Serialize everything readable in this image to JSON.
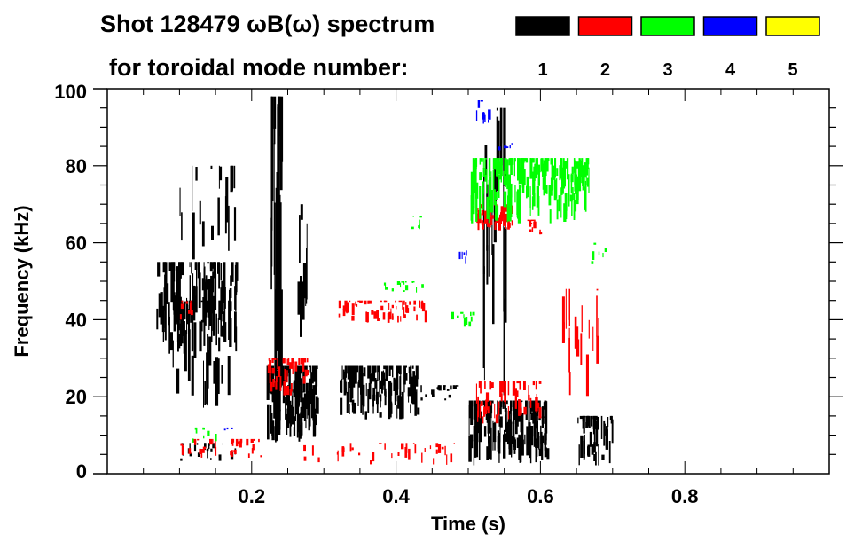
{
  "chart_data": {
    "type": "heatmap",
    "title": "Shot 128479 ωB(ω) spectrum",
    "subtitle": "for toroidal mode number:",
    "xlabel": "Time (s)",
    "ylabel": "Frequency (kHz)",
    "xlim": [
      0,
      1.0
    ],
    "ylim": [
      0,
      100
    ],
    "xticks": [
      0.2,
      0.4,
      0.6,
      0.8
    ],
    "xtick_labels": [
      "0.2",
      "0.4",
      "0.6",
      "0.8"
    ],
    "yticks": [
      0,
      20,
      40,
      60,
      80,
      100
    ],
    "ytick_labels": [
      "0",
      "20",
      "40",
      "60",
      "80",
      "100"
    ],
    "legend": [
      {
        "label": "1",
        "color": "#000000"
      },
      {
        "label": "2",
        "color": "#ff0000"
      },
      {
        "label": "3",
        "color": "#00ff00"
      },
      {
        "label": "4",
        "color": "#0000ff"
      },
      {
        "label": "5",
        "color": "#ffff00"
      }
    ],
    "legend_placement": "top-right",
    "patches": [
      {
        "mode": 1,
        "t": [
          0.066,
          0.18
        ],
        "f": [
          31,
          55
        ],
        "density": 120
      },
      {
        "mode": 1,
        "t": [
          0.09,
          0.17
        ],
        "f": [
          17,
          45
        ],
        "density": 40
      },
      {
        "mode": 1,
        "t": [
          0.1,
          0.18
        ],
        "f": [
          55,
          80
        ],
        "density": 20
      },
      {
        "mode": 1,
        "t": [
          0.1,
          0.18
        ],
        "f": [
          3,
          8
        ],
        "density": 25
      },
      {
        "mode": 1,
        "t": [
          0.22,
          0.29
        ],
        "f": [
          8,
          28
        ],
        "density": 130
      },
      {
        "mode": 1,
        "t": [
          0.225,
          0.24
        ],
        "f": [
          8,
          98
        ],
        "density": 30
      },
      {
        "mode": 1,
        "t": [
          0.26,
          0.28
        ],
        "f": [
          30,
          70
        ],
        "density": 10
      },
      {
        "mode": 1,
        "t": [
          0.32,
          0.43
        ],
        "f": [
          14,
          28
        ],
        "density": 140
      },
      {
        "mode": 1,
        "t": [
          0.43,
          0.5
        ],
        "f": [
          19,
          23
        ],
        "density": 20
      },
      {
        "mode": 1,
        "t": [
          0.5,
          0.61
        ],
        "f": [
          2,
          19
        ],
        "density": 170
      },
      {
        "mode": 1,
        "t": [
          0.52,
          0.55
        ],
        "f": [
          20,
          95
        ],
        "density": 20
      },
      {
        "mode": 1,
        "t": [
          0.65,
          0.7
        ],
        "f": [
          2,
          15
        ],
        "density": 50
      },
      {
        "mode": 2,
        "t": [
          0.22,
          0.28
        ],
        "f": [
          20,
          30
        ],
        "density": 40
      },
      {
        "mode": 2,
        "t": [
          0.32,
          0.44
        ],
        "f": [
          39,
          45
        ],
        "density": 60
      },
      {
        "mode": 2,
        "t": [
          0.51,
          0.56
        ],
        "f": [
          63,
          70
        ],
        "density": 50
      },
      {
        "mode": 2,
        "t": [
          0.58,
          0.6
        ],
        "f": [
          62,
          66
        ],
        "density": 10
      },
      {
        "mode": 2,
        "t": [
          0.51,
          0.6
        ],
        "f": [
          13,
          24
        ],
        "density": 50
      },
      {
        "mode": 2,
        "t": [
          0.1,
          0.22
        ],
        "f": [
          4,
          9
        ],
        "density": 40
      },
      {
        "mode": 2,
        "t": [
          0.27,
          0.48
        ],
        "f": [
          2,
          8
        ],
        "density": 35
      },
      {
        "mode": 2,
        "t": [
          0.63,
          0.68
        ],
        "f": [
          20,
          48
        ],
        "density": 20
      },
      {
        "mode": 2,
        "t": [
          0.1,
          0.12
        ],
        "f": [
          40,
          45
        ],
        "density": 8
      },
      {
        "mode": 3,
        "t": [
          0.5,
          0.67
        ],
        "f": [
          65,
          82
        ],
        "density": 200
      },
      {
        "mode": 3,
        "t": [
          0.37,
          0.44
        ],
        "f": [
          47,
          50
        ],
        "density": 15
      },
      {
        "mode": 3,
        "t": [
          0.42,
          0.44
        ],
        "f": [
          63,
          67
        ],
        "density": 6
      },
      {
        "mode": 3,
        "t": [
          0.47,
          0.51
        ],
        "f": [
          37,
          42
        ],
        "density": 10
      },
      {
        "mode": 3,
        "t": [
          0.67,
          0.69
        ],
        "f": [
          54,
          60
        ],
        "density": 6
      },
      {
        "mode": 3,
        "t": [
          0.11,
          0.15
        ],
        "f": [
          8,
          12
        ],
        "density": 8
      },
      {
        "mode": 4,
        "t": [
          0.51,
          0.53
        ],
        "f": [
          90,
          97
        ],
        "density": 8
      },
      {
        "mode": 4,
        "t": [
          0.48,
          0.5
        ],
        "f": [
          54,
          58
        ],
        "density": 5
      },
      {
        "mode": 4,
        "t": [
          0.54,
          0.56
        ],
        "f": [
          84,
          86
        ],
        "density": 5
      },
      {
        "mode": 4,
        "t": [
          0.16,
          0.175
        ],
        "f": [
          10,
          12
        ],
        "density": 3
      }
    ]
  }
}
